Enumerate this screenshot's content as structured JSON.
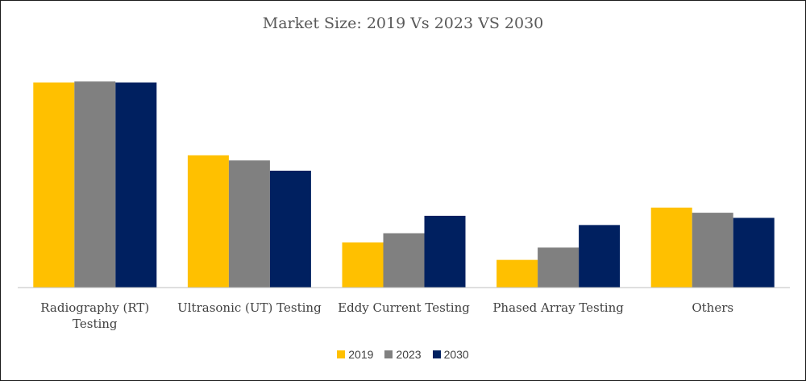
{
  "chart_data": {
    "type": "bar",
    "title": "Market Size: 2019 Vs 2023 VS 2030",
    "categories": [
      [
        "Radiography (RT)",
        "Testing"
      ],
      [
        "Ultrasonic (UT) Testing"
      ],
      [
        "Eddy Current Testing"
      ],
      [
        "Phased Array Testing"
      ],
      [
        "Others"
      ]
    ],
    "series": [
      {
        "name": "2019",
        "color": "#FFC000",
        "values": [
          100,
          64.5,
          22,
          13.5,
          39
        ]
      },
      {
        "name": "2023",
        "color": "#808080",
        "values": [
          100.5,
          62,
          26.5,
          19.5,
          36.5
        ]
      },
      {
        "name": "2030",
        "color": "#002060",
        "values": [
          100,
          57,
          35,
          30.5,
          34
        ]
      }
    ],
    "ylim": [
      0,
      110
    ],
    "grid": false,
    "legend_position": "bottom"
  }
}
